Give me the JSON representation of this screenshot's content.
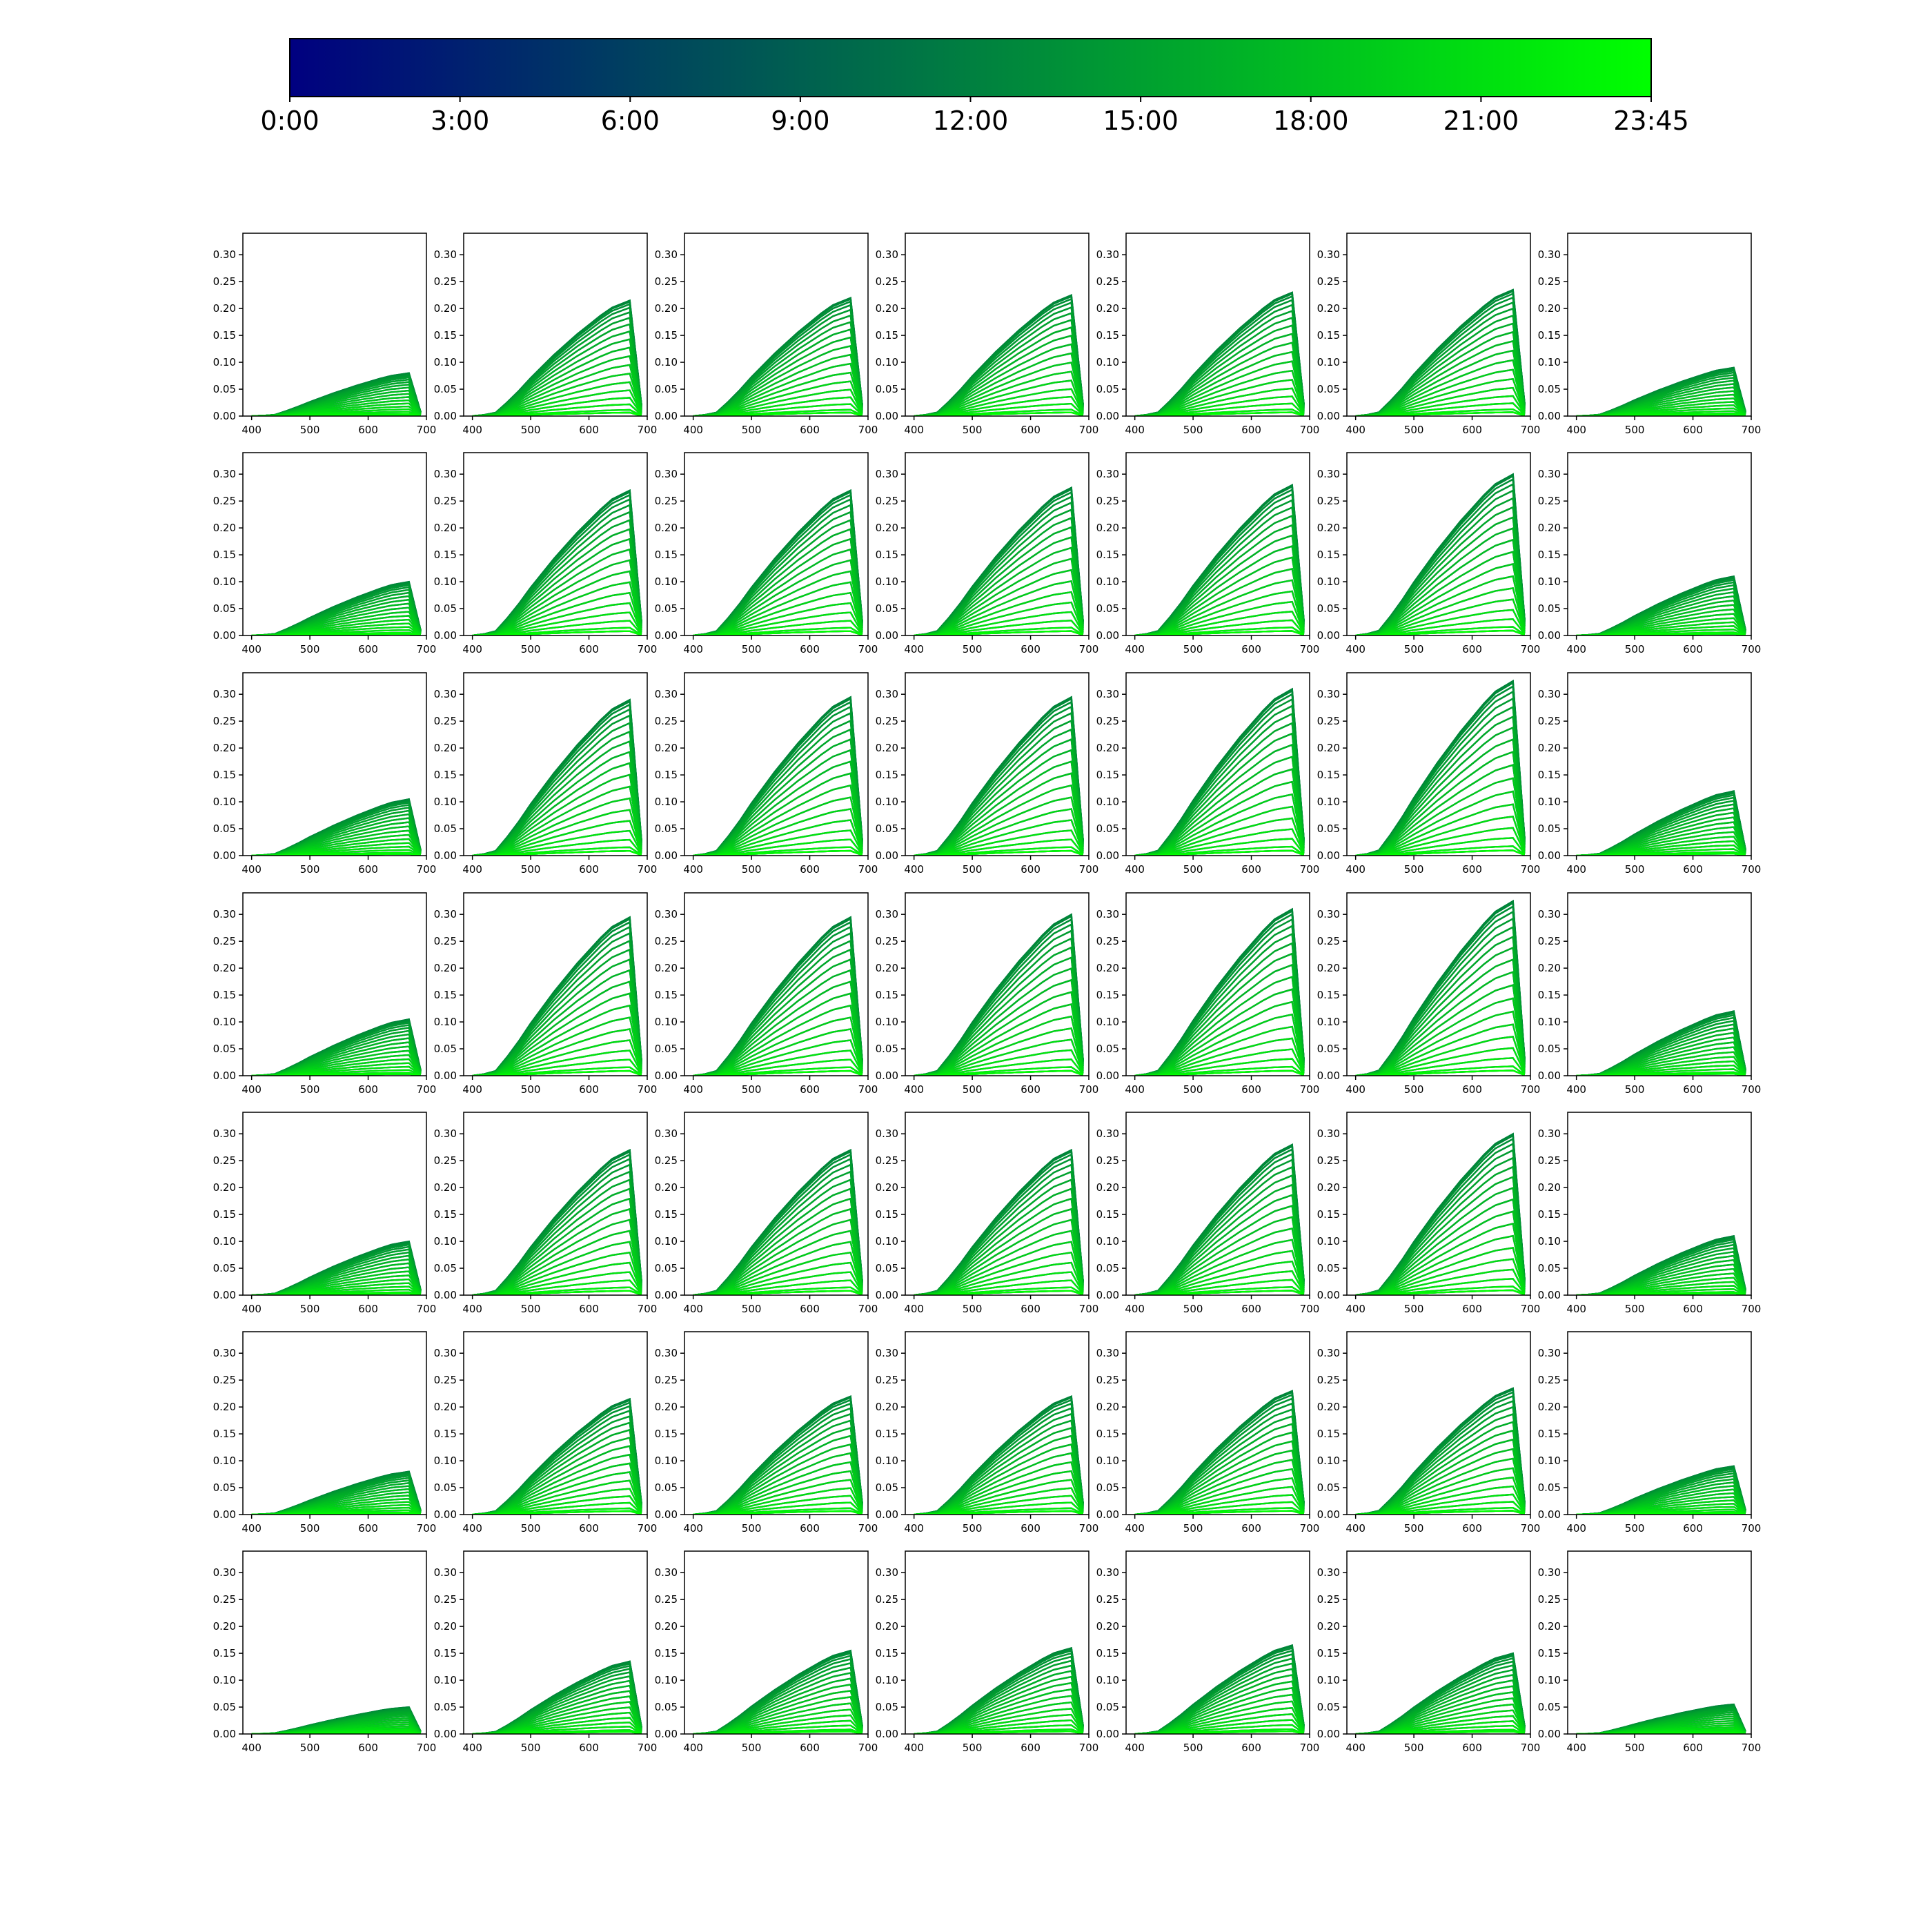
{
  "colorbar": {
    "colors": [
      "#000080",
      "#00ff00"
    ],
    "ticks": [
      "0:00",
      "3:00",
      "6:00",
      "9:00",
      "12:00",
      "15:00",
      "18:00",
      "21:00",
      "23:45"
    ]
  },
  "chart_data": {
    "type": "line",
    "grid_rows": 7,
    "grid_cols": 7,
    "xlim": [
      385,
      700
    ],
    "ylim": [
      0,
      0.34
    ],
    "x_ticks": [
      "400",
      "500",
      "600",
      "700"
    ],
    "y_ticks": [
      "0.00",
      "0.05",
      "0.10",
      "0.15",
      "0.20",
      "0.25",
      "0.30"
    ],
    "x_values": [
      400,
      420,
      440,
      460,
      480,
      500,
      520,
      540,
      560,
      580,
      600,
      620,
      640,
      660,
      670,
      690
    ],
    "curve_shape": [
      0.0,
      0.01,
      0.03,
      0.12,
      0.22,
      0.33,
      0.43,
      0.53,
      0.62,
      0.71,
      0.79,
      0.87,
      0.94,
      0.98,
      1.0,
      0.1
    ],
    "series_count": 40,
    "time_range": [
      "0:00",
      "23:45"
    ],
    "panel_peaks": [
      [
        0.08,
        0.215,
        0.22,
        0.225,
        0.23,
        0.235,
        0.09
      ],
      [
        0.1,
        0.27,
        0.27,
        0.275,
        0.28,
        0.3,
        0.11
      ],
      [
        0.105,
        0.29,
        0.295,
        0.295,
        0.31,
        0.325,
        0.12
      ],
      [
        0.105,
        0.295,
        0.295,
        0.3,
        0.31,
        0.325,
        0.12
      ],
      [
        0.1,
        0.27,
        0.27,
        0.27,
        0.28,
        0.3,
        0.11
      ],
      [
        0.08,
        0.215,
        0.22,
        0.22,
        0.23,
        0.235,
        0.09
      ],
      [
        0.05,
        0.135,
        0.155,
        0.16,
        0.165,
        0.15,
        0.055
      ]
    ]
  }
}
